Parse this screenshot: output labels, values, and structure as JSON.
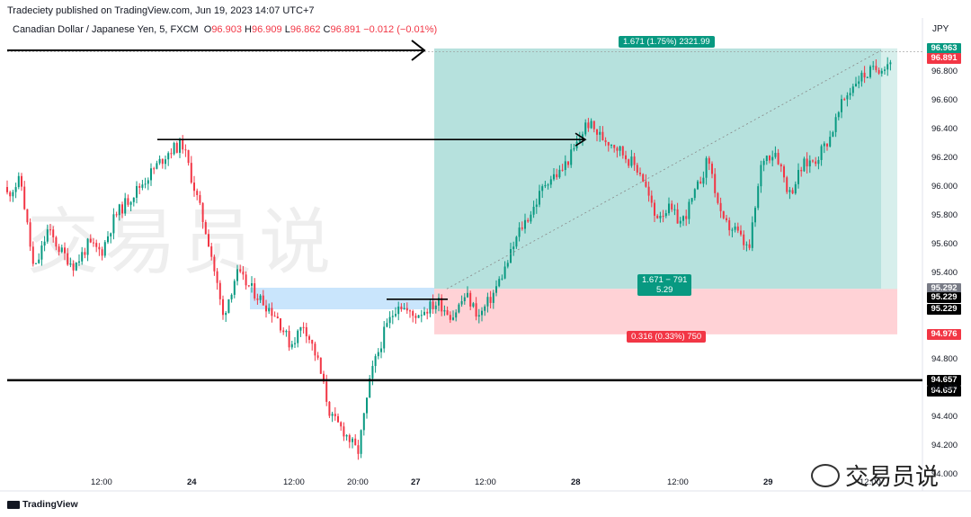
{
  "header": {
    "publisher": "Tradeciety published on TradingView.com, Jun 19, 2023 14:07 UTC+7",
    "symbol": "Canadian Dollar / Japanese Yen, 5, FXCM",
    "o_label": "O",
    "o_val": "96.903",
    "h_label": "H",
    "h_val": "96.909",
    "l_label": "L",
    "l_val": "96.862",
    "c_label": "C",
    "c_val": "96.891",
    "change": "−0.012 (−0.01%)"
  },
  "currency": "JPY",
  "watermark": "交易员说",
  "brand_footer": "TradingView",
  "social_watermark": "交易员说",
  "position": {
    "target_label": "1.671 (1.75%) 2321.99",
    "center_label_1": "1.671 − 791",
    "center_label_2": "5.29",
    "stop_label": "0.316 (0.33%) 750"
  },
  "price_tags": [
    {
      "value": "96.963",
      "color": "#089981",
      "price": 96.963
    },
    {
      "value": "96.891",
      "color": "#f23645",
      "price": 96.891
    },
    {
      "value": "95.292",
      "color": "#787b86",
      "price": 95.292
    },
    {
      "value": "95.229",
      "color": "#000000",
      "price": 95.229
    },
    {
      "value": "95.229",
      "color": "#000000",
      "price": 95.15
    },
    {
      "value": "94.976",
      "color": "#f23645",
      "price": 94.976
    },
    {
      "value": "94.657",
      "color": "#000000",
      "price": 94.657
    },
    {
      "value": "94.657",
      "color": "#000000",
      "price": 94.58
    }
  ],
  "colors": {
    "up": "#089981",
    "down": "#f23645",
    "target_zone": "#b2dfdb",
    "stop_zone": "#ffcdd2",
    "supply_zone": "#bbdefb"
  },
  "chart_data": {
    "type": "candlestick",
    "symbol": "CADJPY",
    "timeframe": "5",
    "y_axis": {
      "min": 94.0,
      "max": 97.05,
      "ticks": [
        "96.800",
        "96.600",
        "96.400",
        "96.200",
        "96.000",
        "95.800",
        "95.600",
        "95.400",
        "94.800",
        "94.600",
        "94.400",
        "94.200",
        "94.000"
      ]
    },
    "x_axis_ticks": [
      "12:00",
      "24",
      "12:00",
      "20:00",
      "27",
      "12:00",
      "28",
      "12:00",
      "29",
      "12:00"
    ],
    "price_path": [
      [
        0,
        95.95
      ],
      [
        15,
        96.05
      ],
      [
        30,
        95.4
      ],
      [
        45,
        95.7
      ],
      [
        60,
        95.55
      ],
      [
        75,
        95.45
      ],
      [
        90,
        95.6
      ],
      [
        105,
        95.55
      ],
      [
        120,
        95.8
      ],
      [
        140,
        95.95
      ],
      [
        160,
        96.1
      ],
      [
        180,
        96.25
      ],
      [
        195,
        96.3
      ],
      [
        210,
        95.95
      ],
      [
        225,
        95.6
      ],
      [
        240,
        95.1
      ],
      [
        255,
        95.4
      ],
      [
        270,
        95.3
      ],
      [
        285,
        95.2
      ],
      [
        300,
        95.1
      ],
      [
        315,
        94.9
      ],
      [
        330,
        95.05
      ],
      [
        345,
        94.8
      ],
      [
        360,
        94.4
      ],
      [
        375,
        94.3
      ],
      [
        390,
        94.15
      ],
      [
        405,
        94.7
      ],
      [
        420,
        95.0
      ],
      [
        435,
        95.2
      ],
      [
        450,
        95.1
      ],
      [
        465,
        95.15
      ],
      [
        480,
        95.2
      ],
      [
        495,
        95.1
      ],
      [
        510,
        95.25
      ],
      [
        525,
        95.1
      ],
      [
        540,
        95.25
      ],
      [
        555,
        95.45
      ],
      [
        570,
        95.7
      ],
      [
        585,
        95.85
      ],
      [
        600,
        96.05
      ],
      [
        615,
        96.1
      ],
      [
        630,
        96.25
      ],
      [
        645,
        96.45
      ],
      [
        660,
        96.35
      ],
      [
        675,
        96.3
      ],
      [
        690,
        96.2
      ],
      [
        705,
        96.1
      ],
      [
        720,
        95.8
      ],
      [
        735,
        95.85
      ],
      [
        750,
        95.75
      ],
      [
        765,
        95.95
      ],
      [
        780,
        96.2
      ],
      [
        795,
        95.75
      ],
      [
        810,
        95.7
      ],
      [
        825,
        95.55
      ],
      [
        840,
        96.2
      ],
      [
        855,
        96.25
      ],
      [
        870,
        95.95
      ],
      [
        885,
        96.15
      ],
      [
        900,
        96.2
      ],
      [
        915,
        96.35
      ],
      [
        930,
        96.6
      ],
      [
        945,
        96.75
      ],
      [
        960,
        96.8
      ],
      [
        975,
        96.85
      ],
      [
        985,
        96.89
      ]
    ],
    "horizontal_lines": [
      96.94,
      94.657
    ],
    "arrows": [
      {
        "from_price": 96.95,
        "to_price": 96.95,
        "label": "target"
      },
      {
        "from_price": 96.33,
        "to_price": 96.33,
        "label": "prior high"
      }
    ],
    "position": {
      "entry": 95.292,
      "target": 96.963,
      "stop": 94.976
    },
    "supply_zone": [
      95.15,
      95.3
    ],
    "ohlc": {
      "open": 96.903,
      "high": 96.909,
      "low": 96.862,
      "close": 96.891,
      "change": -0.012,
      "change_pct": -0.01
    }
  }
}
